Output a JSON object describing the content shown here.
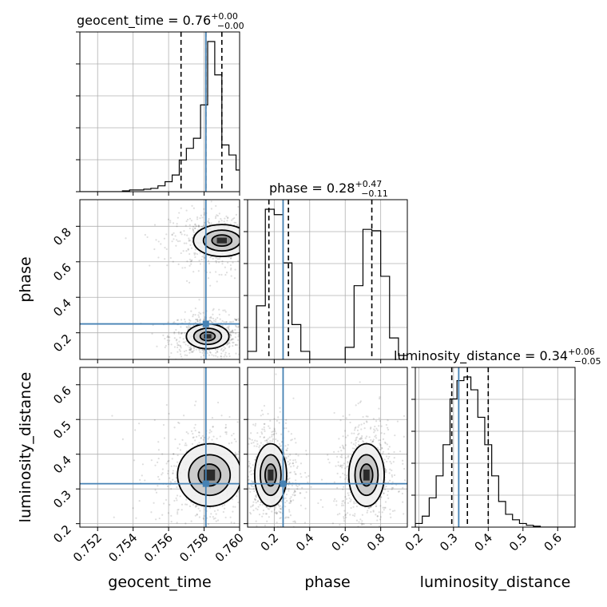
{
  "chart_data": {
    "type": "corner",
    "parameters": [
      {
        "name": "geocent_time",
        "label": "geocent_time",
        "range": [
          0.751,
          0.76
        ],
        "ticks": [
          0.752,
          0.754,
          0.756,
          0.758,
          0.76
        ],
        "tick_labels": [
          "0.752",
          "0.754",
          "0.756",
          "0.758",
          "0.760"
        ],
        "truth": 0.7581,
        "quantiles": [
          0.7567,
          0.7581,
          0.759
        ],
        "title": {
          "base": "geocent_time = 0.76",
          "plus": "+0.00",
          "minus": "−0.00"
        },
        "hist_bins": [
          0.751,
          0.7514,
          0.7518,
          0.7522,
          0.7526,
          0.753,
          0.7534,
          0.7538,
          0.7542,
          0.7546,
          0.755,
          0.7554,
          0.7558,
          0.7562,
          0.7566,
          0.757,
          0.7574,
          0.7578,
          0.7582,
          0.7586,
          0.759,
          0.7594,
          0.7598,
          0.7602
        ],
        "hist_counts": [
          0,
          0,
          0,
          0,
          0,
          0,
          0.5,
          1,
          1,
          1.5,
          2,
          3.5,
          6,
          10,
          19,
          26,
          32,
          52,
          90,
          70,
          28,
          22,
          13,
          0
        ]
      },
      {
        "name": "phase",
        "label": "phase",
        "range": [
          0.05,
          0.95
        ],
        "ticks": [
          0.2,
          0.4,
          0.6,
          0.8
        ],
        "tick_labels": [
          "0.2",
          "0.4",
          "0.6",
          "0.8"
        ],
        "truth": 0.25,
        "quantiles": [
          0.17,
          0.28,
          0.75
        ],
        "title": {
          "base": "phase = 0.28",
          "plus": "+0.47",
          "minus": "−0.11"
        },
        "hist_bins": [
          0.05,
          0.1,
          0.15,
          0.2,
          0.25,
          0.3,
          0.35,
          0.4,
          0.45,
          0.5,
          0.55,
          0.6,
          0.65,
          0.7,
          0.75,
          0.8,
          0.85,
          0.9,
          0.95
        ],
        "hist_counts": [
          6,
          40,
          112,
          108,
          72,
          26,
          6,
          0,
          0,
          0,
          0,
          9,
          55,
          97,
          96,
          62,
          16,
          3
        ]
      },
      {
        "name": "luminosity_distance",
        "label": "luminosity_distance",
        "range": [
          0.19,
          0.65
        ],
        "ticks": [
          0.2,
          0.3,
          0.4,
          0.5,
          0.6
        ],
        "tick_labels": [
          "0.2",
          "0.3",
          "0.4",
          "0.5",
          "0.6"
        ],
        "truth": 0.315,
        "quantiles": [
          0.295,
          0.34,
          0.4
        ],
        "title": {
          "base": "luminosity_distance = 0.34",
          "plus": "+0.06",
          "minus": "−0.05"
        },
        "hist_bins": [
          0.19,
          0.21,
          0.23,
          0.25,
          0.27,
          0.29,
          0.31,
          0.33,
          0.35,
          0.37,
          0.39,
          0.41,
          0.43,
          0.45,
          0.47,
          0.49,
          0.51,
          0.53,
          0.55,
          0.57,
          0.59,
          0.61,
          0.63,
          0.65
        ],
        "hist_counts": [
          2,
          6,
          16,
          28,
          45,
          70,
          80,
          82,
          75,
          60,
          45,
          28,
          14,
          7,
          4,
          2,
          1,
          0.5,
          0,
          0,
          0,
          0,
          0
        ]
      }
    ],
    "y_tick_labels": {
      "phase": [
        "0.2",
        "0.4",
        "0.6",
        "0.8"
      ],
      "luminosity_distance": [
        "0.2",
        "0.3",
        "0.4",
        "0.5",
        "0.6"
      ]
    },
    "grid": true,
    "truth_color": "#4682b4",
    "modes": {
      "geocent_time_vs_phase": [
        {
          "x": 0.7582,
          "y": 0.18,
          "sx": 0.0006,
          "sy": 0.035
        },
        {
          "x": 0.759,
          "y": 0.72,
          "sx": 0.0008,
          "sy": 0.045
        }
      ],
      "geocent_time_vs_luminosity_distance": [
        {
          "x": 0.7583,
          "y": 0.34,
          "sx": 0.0009,
          "sy": 0.045
        }
      ],
      "phase_vs_luminosity_distance": [
        {
          "x": 0.18,
          "y": 0.34,
          "sx": 0.045,
          "sy": 0.045
        },
        {
          "x": 0.72,
          "y": 0.34,
          "sx": 0.05,
          "sy": 0.045
        }
      ]
    }
  }
}
